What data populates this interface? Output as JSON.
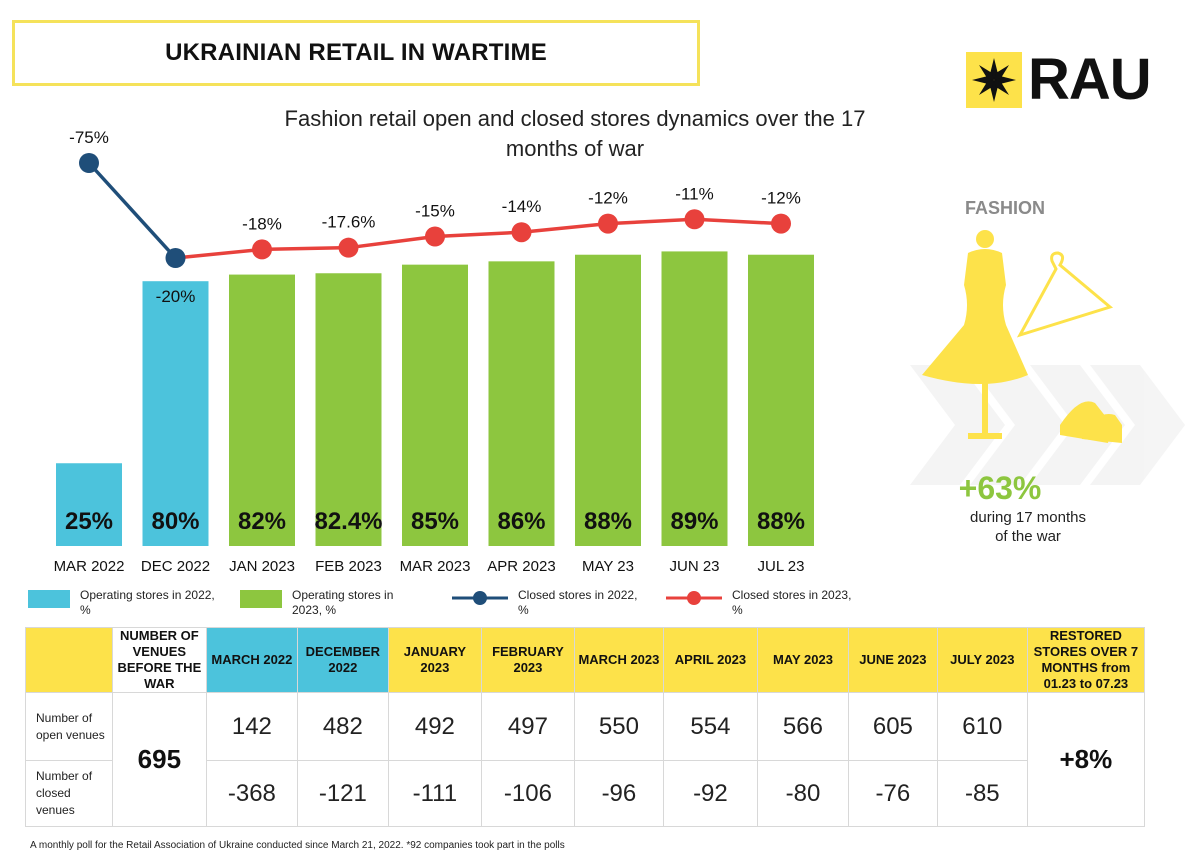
{
  "header": {
    "title": "UKRAINIAN RETAIL IN WARTIME",
    "logo_text": "RAU"
  },
  "chart_title": "Fashion retail open and closed stores dynamics over the 17 months of war",
  "side_panel": {
    "category": "FASHION",
    "growth": "+63%",
    "growth_note": "during 17 months of the war"
  },
  "chart_data": {
    "type": "bar",
    "title": "Fashion retail open and closed stores dynamics over the 17 months of war",
    "categories": [
      "MAR 2022",
      "DEC 2022",
      "JAN 2023",
      "FEB 2023",
      "MAR 2023",
      "APR 2023",
      "MAY 23",
      "JUN 23",
      "JUL 23"
    ],
    "bar_labels": [
      "25%",
      "80%",
      "82%",
      "82.4%",
      "85%",
      "86%",
      "88%",
      "89%",
      "88%"
    ],
    "line_labels": [
      "-75%",
      "-20%",
      "-18%",
      "-17.6%",
      "-15%",
      "-14%",
      "-12%",
      "-11%",
      "-12%"
    ],
    "series": [
      {
        "name": "Operating stores in 2022, %",
        "type": "bar",
        "color": "#4cc3dc",
        "values": [
          25,
          80,
          null,
          null,
          null,
          null,
          null,
          null,
          null
        ]
      },
      {
        "name": "Operating stores in 2023, %",
        "type": "bar",
        "color": "#8dc63f",
        "values": [
          null,
          null,
          82,
          82.4,
          85,
          86,
          88,
          89,
          88
        ]
      },
      {
        "name": "Closed stores in 2022, %",
        "type": "line",
        "color": "#1f4e79",
        "values": [
          -75,
          -20,
          null,
          null,
          null,
          null,
          null,
          null,
          null
        ]
      },
      {
        "name": "Closed stores in 2023, %",
        "type": "line",
        "color": "#e8413c",
        "values": [
          null,
          -20,
          -18,
          -17.6,
          -15,
          -14,
          -12,
          -11,
          -12
        ]
      }
    ],
    "legend_position": "bottom"
  },
  "table": {
    "headers": [
      {
        "label": "",
        "color": "yellow"
      },
      {
        "label": "NUMBER OF VENUES BEFORE THE WAR",
        "color": "white"
      },
      {
        "label": "MARCH 2022",
        "color": "blue"
      },
      {
        "label": "DECEMBER 2022",
        "color": "blue"
      },
      {
        "label": "JANUARY 2023",
        "color": "yellow"
      },
      {
        "label": "FEBRUARY 2023",
        "color": "yellow"
      },
      {
        "label": "MARCH 2023",
        "color": "yellow"
      },
      {
        "label": "APRIL 2023",
        "color": "yellow"
      },
      {
        "label": "MAY 2023",
        "color": "yellow"
      },
      {
        "label": "JUNE 2023",
        "color": "yellow"
      },
      {
        "label": "JULY 2023",
        "color": "yellow"
      },
      {
        "label": "RESTORED STORES OVER 7 MONTHS from 01.23 to 07.23",
        "color": "yellow"
      }
    ],
    "venues_before_war": "695",
    "restored": "+8%",
    "rows": [
      {
        "label": "Number of open venues",
        "values": [
          "142",
          "482",
          "492",
          "497",
          "550",
          "554",
          "566",
          "605",
          "610"
        ]
      },
      {
        "label": "Number of closed venues",
        "values": [
          "-368",
          "-121",
          "-111",
          "-106",
          "-96",
          "-92",
          "-80",
          "-76",
          "-85"
        ]
      }
    ]
  },
  "footnote": "A monthly poll for the Retail Association of Ukraine conducted since March 21, 2022. *92 companies took part in the polls",
  "colors": {
    "yellow": "#fde24a",
    "blue": "#4cc3dc",
    "green": "#8dc63f",
    "navy": "#1f4e79",
    "red": "#e8413c"
  }
}
